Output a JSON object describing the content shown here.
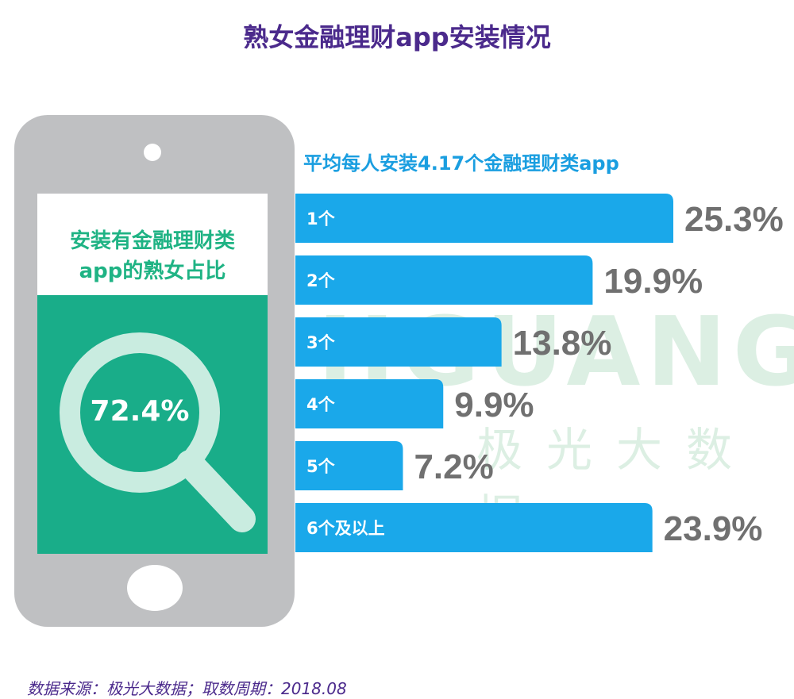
{
  "title": "熟女金融理财app安装情况",
  "subtitle": "平均每人安装4.17个金融理财类app",
  "phone": {
    "label_line1": "安装有金融理财类",
    "label_line2": "app的熟女占比",
    "percent": "72.4%"
  },
  "watermark": {
    "text": "JIGUANG",
    "cn": "极光大数据"
  },
  "footer": "数据来源：极光大数据；取数周期：2018.08",
  "colors": {
    "bar": "#1aa8ea",
    "value": "#707070",
    "title": "#4b2a8c",
    "green": "#19ad89"
  },
  "chart_data": {
    "type": "bar",
    "orientation": "horizontal",
    "categories": [
      "1个",
      "2个",
      "3个",
      "4个",
      "5个",
      "6个及以上"
    ],
    "values": [
      25.3,
      19.9,
      13.8,
      9.9,
      7.2,
      23.9
    ],
    "value_labels": [
      "25.3%",
      "19.9%",
      "13.8%",
      "9.9%",
      "7.2%",
      "23.9%"
    ],
    "unit": "%",
    "grid": false
  }
}
